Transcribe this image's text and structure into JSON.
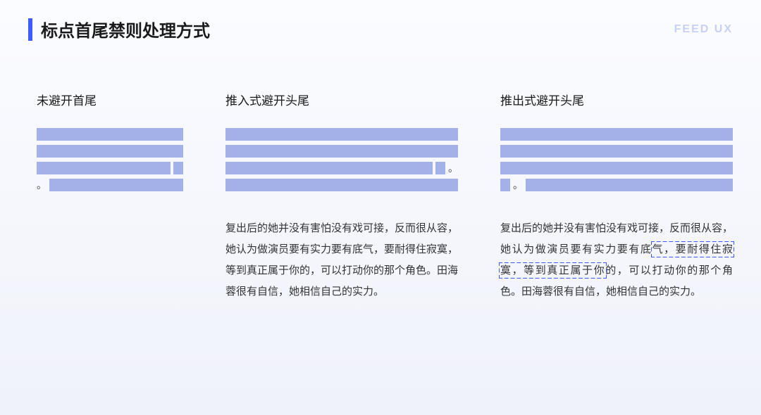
{
  "header": {
    "title": "标点首尾禁则处理方式",
    "brand": "FEED UX",
    "accent_color": "#3f5bff"
  },
  "bar_color": "#a4b1e8",
  "columns": [
    {
      "heading": "未避开首尾",
      "lines": [
        {
          "segments": [
            {
              "type": "bar",
              "grow": true
            }
          ]
        },
        {
          "segments": [
            {
              "type": "bar",
              "grow": true
            }
          ]
        },
        {
          "segments": [
            {
              "type": "bar",
              "grow": true
            },
            {
              "type": "bar",
              "width": 14
            }
          ]
        },
        {
          "segments": [
            {
              "type": "punct",
              "text": "。"
            },
            {
              "type": "bar",
              "grow": true
            }
          ]
        }
      ],
      "sample": null
    },
    {
      "heading": "推入式避开头尾",
      "lines": [
        {
          "segments": [
            {
              "type": "bar",
              "grow": true
            }
          ]
        },
        {
          "segments": [
            {
              "type": "bar",
              "grow": true
            }
          ]
        },
        {
          "segments": [
            {
              "type": "bar",
              "grow": true
            },
            {
              "type": "bar",
              "width": 14
            },
            {
              "type": "punct",
              "text": "。"
            }
          ]
        },
        {
          "segments": [
            {
              "type": "bar",
              "grow": true
            }
          ]
        }
      ],
      "sample": {
        "pre": "复出后的她并没有害怕没有戏可接，反而很从容，她认为做演员要有实力要有底气，要耐得住寂寞，等到真正属于你的，可以打动你的那个角色。田海蓉很有自信，她相信自己的实力。",
        "highlight": "",
        "post": ""
      }
    },
    {
      "heading": "推出式避开头尾",
      "lines": [
        {
          "segments": [
            {
              "type": "bar",
              "grow": true
            }
          ]
        },
        {
          "segments": [
            {
              "type": "bar",
              "grow": true
            }
          ]
        },
        {
          "segments": [
            {
              "type": "bar",
              "grow": true
            }
          ]
        },
        {
          "segments": [
            {
              "type": "bar",
              "width": 14
            },
            {
              "type": "punct",
              "text": "。"
            },
            {
              "type": "bar",
              "grow": true
            }
          ]
        }
      ],
      "sample": {
        "pre": "复出后的她并没有害怕没有戏可接，反而很从容，她认为做演员要有实力要有底",
        "highlight": "气，要耐得住寂寞，等到真正属于你",
        "post": "的，可以打动你的那个角色。田海蓉很有自信，她相信自己的实力。"
      }
    }
  ]
}
